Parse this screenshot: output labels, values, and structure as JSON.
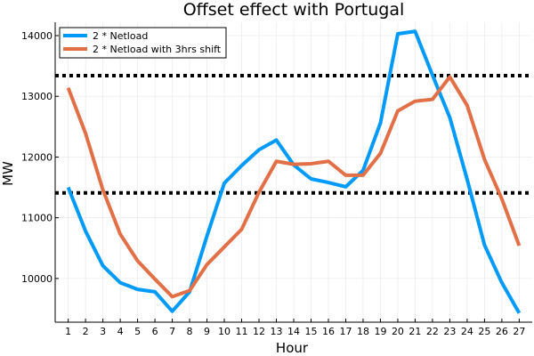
{
  "chart_data": {
    "type": "line",
    "title": "Offset effect with Portugal",
    "xlabel": "Hour",
    "ylabel": "MW",
    "x": [
      1,
      2,
      3,
      4,
      5,
      6,
      7,
      8,
      9,
      10,
      11,
      12,
      13,
      14,
      15,
      16,
      17,
      18,
      19,
      20,
      21,
      22,
      23,
      24,
      25,
      26,
      27
    ],
    "xlim": [
      0.25,
      27.75
    ],
    "ylim": [
      9280,
      14220
    ],
    "yticks": [
      10000,
      11000,
      12000,
      13000,
      14000
    ],
    "grid": true,
    "legend_position": "top-left",
    "series": [
      {
        "name": "2 * Netload",
        "color": "#009AF9",
        "values": [
          11500,
          10780,
          10210,
          9930,
          9820,
          9780,
          9460,
          9780,
          10700,
          11570,
          11860,
          12120,
          12280,
          11870,
          11640,
          11580,
          11510,
          11780,
          12560,
          14030,
          14070,
          13350,
          12650,
          11630,
          10550,
          9930,
          9430
        ]
      },
      {
        "name": "2 * Netload with 3hrs shift",
        "color": "#E26F46",
        "values": [
          13140,
          12390,
          11460,
          10730,
          10290,
          9990,
          9700,
          9800,
          10230,
          10520,
          10810,
          11420,
          11930,
          11880,
          11890,
          11930,
          11700,
          11700,
          12060,
          12760,
          12920,
          12950,
          13320,
          12850,
          11960,
          11310,
          10540
        ]
      }
    ],
    "reference_lines": [
      {
        "y": 13340,
        "color": "#000000",
        "style": "dotted"
      },
      {
        "y": 11410,
        "color": "#000000",
        "style": "dotted"
      }
    ]
  }
}
